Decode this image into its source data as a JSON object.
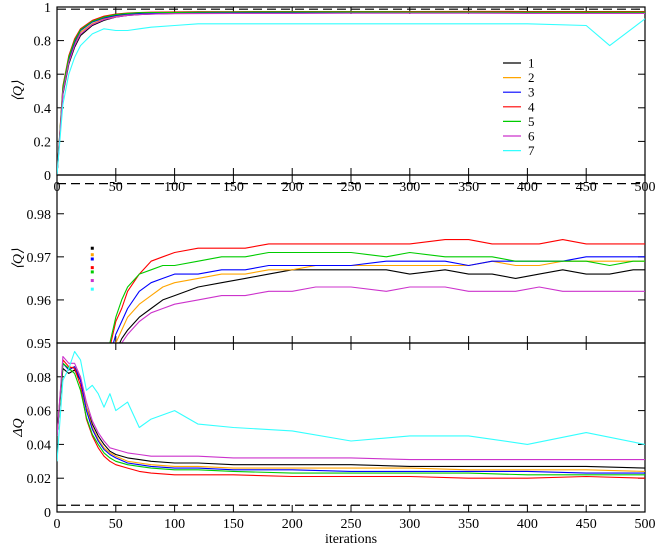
{
  "chart_data": [
    {
      "type": "line",
      "ylabel": "⟨Q⟩",
      "xlim": [
        0,
        500
      ],
      "ylim": [
        0,
        1
      ],
      "xticks": [
        0,
        50,
        100,
        150,
        200,
        250,
        300,
        350,
        400,
        450,
        500
      ],
      "yticks": [
        0,
        0.2,
        0.4,
        0.6,
        0.8,
        1
      ],
      "ytick_labels": [
        "0",
        "0.2",
        "0.4",
        "0.6",
        "0.8",
        "1"
      ],
      "reference_line": 0.987,
      "legend": {
        "placement": "right-middle",
        "entries": [
          "1",
          "2",
          "3",
          "4",
          "5",
          "6",
          "7"
        ]
      },
      "x": [
        0,
        5,
        10,
        15,
        20,
        30,
        40,
        50,
        60,
        70,
        80,
        100,
        120,
        150,
        180,
        200,
        250,
        300,
        350,
        400,
        450,
        470,
        500
      ],
      "series": [
        {
          "name": "1",
          "color": "#000000",
          "values": [
            0,
            0.48,
            0.66,
            0.76,
            0.83,
            0.89,
            0.92,
            0.94,
            0.95,
            0.955,
            0.958,
            0.962,
            0.964,
            0.965,
            0.966,
            0.966,
            0.967,
            0.967,
            0.966,
            0.966,
            0.967,
            0.967,
            0.967
          ]
        },
        {
          "name": "2",
          "color": "#ffa500",
          "values": [
            0,
            0.5,
            0.68,
            0.78,
            0.85,
            0.9,
            0.93,
            0.945,
            0.953,
            0.958,
            0.961,
            0.964,
            0.965,
            0.966,
            0.967,
            0.967,
            0.968,
            0.968,
            0.968,
            0.968,
            0.969,
            0.969,
            0.969
          ]
        },
        {
          "name": "3",
          "color": "#0000ff",
          "values": [
            0,
            0.5,
            0.69,
            0.79,
            0.86,
            0.91,
            0.935,
            0.95,
            0.958,
            0.962,
            0.964,
            0.966,
            0.967,
            0.967,
            0.968,
            0.968,
            0.968,
            0.969,
            0.969,
            0.969,
            0.97,
            0.97,
            0.97
          ]
        },
        {
          "name": "4",
          "color": "#ff0000",
          "values": [
            0,
            0.53,
            0.71,
            0.81,
            0.87,
            0.92,
            0.945,
            0.958,
            0.964,
            0.967,
            0.969,
            0.971,
            0.972,
            0.972,
            0.973,
            0.973,
            0.973,
            0.973,
            0.974,
            0.973,
            0.973,
            0.973,
            0.973
          ]
        },
        {
          "name": "5",
          "color": "#00cc00",
          "values": [
            0,
            0.52,
            0.7,
            0.8,
            0.865,
            0.915,
            0.94,
            0.955,
            0.962,
            0.966,
            0.967,
            0.968,
            0.969,
            0.97,
            0.971,
            0.971,
            0.971,
            0.97,
            0.97,
            0.969,
            0.969,
            0.969,
            0.969
          ]
        },
        {
          "name": "6",
          "color": "#cc33cc",
          "values": [
            0,
            0.49,
            0.67,
            0.77,
            0.84,
            0.895,
            0.925,
            0.94,
            0.95,
            0.955,
            0.958,
            0.96,
            0.961,
            0.962,
            0.962,
            0.962,
            0.963,
            0.963,
            0.963,
            0.962,
            0.962,
            0.962,
            0.962
          ]
        },
        {
          "name": "7",
          "color": "#33ffff",
          "values": [
            0,
            0.42,
            0.6,
            0.7,
            0.77,
            0.84,
            0.87,
            0.86,
            0.86,
            0.87,
            0.88,
            0.89,
            0.9,
            0.9,
            0.9,
            0.9,
            0.9,
            0.9,
            0.9,
            0.9,
            0.89,
            0.77,
            0.93
          ]
        }
      ]
    },
    {
      "type": "line",
      "ylabel": "⟨Q⟩",
      "xlim": [
        0,
        500
      ],
      "ylim": [
        0.95,
        0.989
      ],
      "yticks": [
        0.95,
        0.96,
        0.97,
        0.98
      ],
      "ytick_labels": [
        "0.95",
        "0.96",
        "0.97",
        "0.98"
      ],
      "reference_line": 0.987,
      "marker_x": 30,
      "marker_values": [
        0.972,
        0.9705,
        0.9695,
        0.9675,
        0.9665,
        0.9645,
        0.9625
      ],
      "x": [
        45,
        50,
        55,
        60,
        70,
        80,
        90,
        100,
        120,
        140,
        160,
        180,
        200,
        220,
        250,
        280,
        300,
        330,
        350,
        370,
        390,
        410,
        430,
        450,
        470,
        490,
        500
      ],
      "series": [
        {
          "name": "1",
          "color": "#000000",
          "values": [
            0.945,
            0.948,
            0.951,
            0.953,
            0.956,
            0.958,
            0.96,
            0.961,
            0.963,
            0.964,
            0.965,
            0.966,
            0.967,
            0.967,
            0.967,
            0.967,
            0.966,
            0.967,
            0.966,
            0.966,
            0.965,
            0.966,
            0.967,
            0.966,
            0.966,
            0.967,
            0.967
          ]
        },
        {
          "name": "2",
          "color": "#ffa500",
          "values": [
            0.946,
            0.95,
            0.953,
            0.956,
            0.959,
            0.961,
            0.963,
            0.964,
            0.965,
            0.966,
            0.966,
            0.967,
            0.967,
            0.968,
            0.968,
            0.968,
            0.968,
            0.968,
            0.968,
            0.969,
            0.968,
            0.968,
            0.969,
            0.969,
            0.969,
            0.969,
            0.969
          ]
        },
        {
          "name": "3",
          "color": "#0000ff",
          "values": [
            0.947,
            0.952,
            0.955,
            0.958,
            0.962,
            0.964,
            0.965,
            0.966,
            0.966,
            0.967,
            0.967,
            0.968,
            0.968,
            0.968,
            0.968,
            0.969,
            0.969,
            0.969,
            0.968,
            0.969,
            0.969,
            0.969,
            0.969,
            0.97,
            0.97,
            0.97,
            0.97
          ]
        },
        {
          "name": "4",
          "color": "#ff0000",
          "values": [
            0.949,
            0.955,
            0.958,
            0.962,
            0.966,
            0.969,
            0.97,
            0.971,
            0.972,
            0.972,
            0.972,
            0.973,
            0.973,
            0.973,
            0.973,
            0.973,
            0.973,
            0.974,
            0.974,
            0.973,
            0.973,
            0.973,
            0.974,
            0.973,
            0.973,
            0.973,
            0.973
          ]
        },
        {
          "name": "5",
          "color": "#00cc00",
          "values": [
            0.95,
            0.956,
            0.96,
            0.963,
            0.966,
            0.967,
            0.968,
            0.968,
            0.969,
            0.97,
            0.97,
            0.971,
            0.971,
            0.971,
            0.971,
            0.97,
            0.971,
            0.97,
            0.97,
            0.97,
            0.969,
            0.969,
            0.969,
            0.969,
            0.968,
            0.969,
            0.969
          ]
        },
        {
          "name": "6",
          "color": "#cc33cc",
          "values": [
            0.944,
            0.947,
            0.95,
            0.952,
            0.955,
            0.957,
            0.958,
            0.959,
            0.96,
            0.961,
            0.961,
            0.962,
            0.962,
            0.963,
            0.963,
            0.962,
            0.963,
            0.963,
            0.962,
            0.962,
            0.962,
            0.963,
            0.962,
            0.962,
            0.962,
            0.962,
            0.962
          ]
        }
      ]
    },
    {
      "type": "line",
      "xlabel": "iterations",
      "ylabel": "ΔQ",
      "xlim": [
        0,
        500
      ],
      "ylim": [
        0,
        0.1
      ],
      "xticks": [
        0,
        50,
        100,
        150,
        200,
        250,
        300,
        350,
        400,
        450,
        500
      ],
      "yticks": [
        0,
        0.02,
        0.04,
        0.06,
        0.08
      ],
      "ytick_labels": [
        "0",
        "0.02",
        "0.04",
        "0.06",
        "0.08"
      ],
      "reference_line": 0.004,
      "x": [
        0,
        5,
        10,
        15,
        20,
        25,
        30,
        35,
        40,
        45,
        50,
        60,
        70,
        80,
        100,
        120,
        150,
        200,
        250,
        300,
        350,
        400,
        450,
        500
      ],
      "series": [
        {
          "name": "1",
          "color": "#000000",
          "values": [
            0.045,
            0.085,
            0.082,
            0.084,
            0.078,
            0.062,
            0.052,
            0.045,
            0.04,
            0.036,
            0.034,
            0.032,
            0.031,
            0.03,
            0.029,
            0.029,
            0.028,
            0.028,
            0.028,
            0.027,
            0.027,
            0.027,
            0.027,
            0.026
          ]
        },
        {
          "name": "2",
          "color": "#ffa500",
          "values": [
            0.045,
            0.088,
            0.085,
            0.086,
            0.08,
            0.062,
            0.05,
            0.043,
            0.038,
            0.035,
            0.033,
            0.03,
            0.029,
            0.028,
            0.027,
            0.027,
            0.026,
            0.026,
            0.026,
            0.026,
            0.025,
            0.025,
            0.025,
            0.024
          ]
        },
        {
          "name": "3",
          "color": "#0000ff",
          "values": [
            0.045,
            0.088,
            0.084,
            0.086,
            0.078,
            0.06,
            0.049,
            0.042,
            0.037,
            0.034,
            0.032,
            0.029,
            0.028,
            0.027,
            0.026,
            0.026,
            0.025,
            0.025,
            0.024,
            0.024,
            0.024,
            0.024,
            0.023,
            0.023
          ]
        },
        {
          "name": "4",
          "color": "#ff0000",
          "values": [
            0.045,
            0.09,
            0.086,
            0.085,
            0.075,
            0.055,
            0.045,
            0.038,
            0.033,
            0.03,
            0.028,
            0.026,
            0.024,
            0.023,
            0.022,
            0.022,
            0.022,
            0.021,
            0.021,
            0.021,
            0.02,
            0.02,
            0.021,
            0.02
          ]
        },
        {
          "name": "5",
          "color": "#00cc00",
          "values": [
            0.045,
            0.088,
            0.085,
            0.082,
            0.072,
            0.056,
            0.046,
            0.04,
            0.035,
            0.032,
            0.03,
            0.028,
            0.027,
            0.026,
            0.025,
            0.025,
            0.024,
            0.023,
            0.023,
            0.023,
            0.023,
            0.022,
            0.022,
            0.022
          ]
        },
        {
          "name": "6",
          "color": "#cc33cc",
          "values": [
            0.045,
            0.092,
            0.088,
            0.088,
            0.08,
            0.065,
            0.054,
            0.047,
            0.042,
            0.038,
            0.037,
            0.035,
            0.034,
            0.033,
            0.033,
            0.033,
            0.032,
            0.032,
            0.032,
            0.031,
            0.031,
            0.031,
            0.031,
            0.031
          ]
        },
        {
          "name": "7",
          "color": "#33ffff",
          "values": [
            0.03,
            0.078,
            0.085,
            0.095,
            0.09,
            0.072,
            0.075,
            0.07,
            0.062,
            0.07,
            0.06,
            0.065,
            0.05,
            0.055,
            0.06,
            0.052,
            0.05,
            0.048,
            0.042,
            0.045,
            0.045,
            0.04,
            0.047,
            0.04
          ]
        }
      ]
    }
  ]
}
